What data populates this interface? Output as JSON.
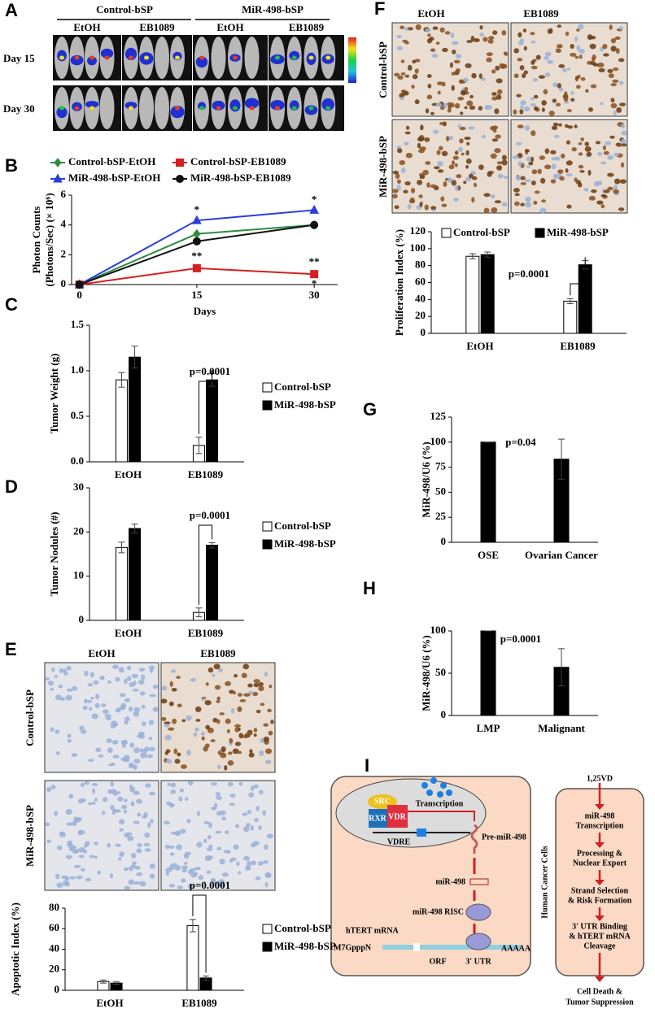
{
  "images": {
    "A": {
      "label": "A",
      "groups": [
        "Control-bSP",
        "MiR-498-bSP"
      ],
      "columns": [
        "EtOH",
        "EB1089",
        "EtOH",
        "EB1089"
      ],
      "rows": [
        "Day 15",
        "Day 30"
      ]
    },
    "E": {
      "label": "E",
      "columns": [
        "EtOH",
        "EB1089"
      ],
      "rows": [
        "Control-bSP",
        "MiR-498-bSP"
      ]
    },
    "F": {
      "label": "F",
      "columns": [
        "EtOH",
        "EB1089"
      ],
      "rows": [
        "Control-bSP",
        "MiR-498-bSP"
      ]
    }
  },
  "chart_data": [
    {
      "type": "line",
      "panel": "B",
      "ylabel": [
        "Photon Counts",
        "(Photons/Sec) (× 10⁶)"
      ],
      "xlabel": "Days",
      "x": [
        0,
        15,
        30
      ],
      "xlim": [
        -1,
        33
      ],
      "xticks": [
        0,
        15,
        30
      ],
      "ylim": [
        0,
        6
      ],
      "yticks": [
        0,
        2,
        4,
        6
      ],
      "series": [
        {
          "name": "Control-bSP-EtOH",
          "color": "#2e8b3e",
          "marker": "diamond",
          "values": [
            0,
            3.4,
            4.0
          ]
        },
        {
          "name": "Control-bSP-EB1089",
          "color": "#d42020",
          "marker": "square",
          "values": [
            0,
            1.1,
            0.7
          ]
        },
        {
          "name": "MiR-498-bSP-EtOH",
          "color": "#2a3fd8",
          "marker": "triangle",
          "values": [
            0,
            4.3,
            5.0
          ]
        },
        {
          "name": "MiR-498-bSP-EB1089",
          "color": "#111111",
          "marker": "circle",
          "values": [
            0,
            2.9,
            4.0
          ]
        }
      ],
      "annotations": [
        "*",
        "*",
        "**",
        "**",
        "*"
      ]
    },
    {
      "type": "bar",
      "panel": "C",
      "ylabel": "Tumor Weight (g)",
      "categories": [
        "EtOH",
        "EB1089"
      ],
      "ylim": [
        0,
        1.5
      ],
      "yticks": [
        {
          "value": 0,
          "label": "0.0"
        },
        0.5,
        {
          "value": 1,
          "label": "1.0"
        },
        1.5
      ],
      "legend": "right",
      "annotation": "p=0.0001",
      "series": [
        {
          "name": "Control-bSP",
          "color": "#ffffff",
          "values": [
            0.9,
            0.18
          ],
          "errors": [
            0.08,
            0.09
          ]
        },
        {
          "name": "MiR-498-bSP",
          "color": "#000000",
          "values": [
            1.15,
            0.9
          ],
          "errors": [
            0.12,
            0.07
          ]
        }
      ]
    },
    {
      "type": "bar",
      "panel": "D",
      "ylabel": "Tumor  Nodules (#)",
      "categories": [
        "EtOH",
        "EB1089"
      ],
      "ylim": [
        0,
        30
      ],
      "yticks": [
        0,
        10,
        20,
        30
      ],
      "legend": "right",
      "annotation": "p=0.0001",
      "series": [
        {
          "name": "Control-bSP",
          "color": "#ffffff",
          "values": [
            16.5,
            1.8
          ],
          "errors": [
            1.2,
            1.0
          ]
        },
        {
          "name": "MiR-498-bSP",
          "color": "#000000",
          "values": [
            20.8,
            17.0
          ],
          "errors": [
            1.0,
            0.6
          ]
        }
      ]
    },
    {
      "type": "bar",
      "ylabel": "Apoptotic Index (%)",
      "categories": [
        "EtOH",
        "EB1089"
      ],
      "ylim": [
        0,
        80
      ],
      "yticks": [
        0,
        20,
        40,
        60,
        80
      ],
      "legend": "right",
      "annotation": "p=0.0001",
      "series": [
        {
          "name": "Control-bSP",
          "color": "#ffffff",
          "values": [
            8.5,
            63
          ],
          "errors": [
            1.5,
            6
          ]
        },
        {
          "name": "MiR-498-bSP",
          "color": "#000000",
          "values": [
            7,
            12
          ],
          "errors": [
            1.2,
            2
          ]
        }
      ]
    },
    {
      "type": "bar",
      "ylabel": "Proliferation  Index (%)",
      "categories": [
        "EtOH",
        "EB1089"
      ],
      "ylim": [
        0,
        120
      ],
      "yticks": [
        0,
        20,
        40,
        60,
        80,
        100,
        120
      ],
      "legend": "top",
      "annotation": "p=0.0001",
      "series": [
        {
          "name": "Control-bSP",
          "color": "#ffffff",
          "values": [
            91,
            38
          ],
          "errors": [
            3,
            3
          ]
        },
        {
          "name": "MiR-498-bSP",
          "color": "#000000",
          "values": [
            93,
            81
          ],
          "errors": [
            3,
            5
          ]
        }
      ]
    },
    {
      "type": "bar",
      "panel": "G",
      "ylabel": "MiR-498/U6 (%)",
      "categories": [
        "OSE",
        "Ovarian Cancer"
      ],
      "ylim": [
        0,
        125
      ],
      "yticks": [
        0,
        25,
        50,
        75,
        100,
        125
      ],
      "annotation": "p=0.04",
      "color": "#000000",
      "values": [
        100,
        83
      ],
      "errors": [
        0,
        20
      ]
    },
    {
      "type": "bar",
      "panel": "H",
      "ylabel": "MiR-498/U6 (%)",
      "categories": [
        "LMP",
        "Malignant"
      ],
      "ylim": [
        0,
        100
      ],
      "yticks": [
        0,
        50,
        100
      ],
      "annotation": "p=0.0001",
      "color": "#000000",
      "values": [
        100,
        57
      ],
      "errors": [
        0,
        22
      ]
    }
  ],
  "diagram": {
    "label": "I",
    "src": "SRC",
    "rxr": "RXR",
    "vdr": "VDR",
    "transcription": "Transcription",
    "vdre": "VDRE",
    "pre_mir": "Pre-miR-498",
    "mir": "miR-498",
    "risc": "miR-498 RISC",
    "mrna": "hTERT mRNA",
    "cap": "M7GpppN",
    "orf": "ORF",
    "utr": "3ʹ UTR",
    "polya": "AAAAA",
    "cells": "Human Cancer Cells",
    "start": "1,25VD",
    "steps": [
      [
        "miR-498",
        "Transcription"
      ],
      [
        "Processing &",
        "Nuclear Export"
      ],
      [
        "Strand Selection",
        "& Risk Formation"
      ],
      [
        "3ʹ UTR Binding",
        "& hTERT mRNA",
        "Cleavage"
      ]
    ],
    "end": [
      "Cell Death &",
      "Tumor Suppression"
    ]
  }
}
